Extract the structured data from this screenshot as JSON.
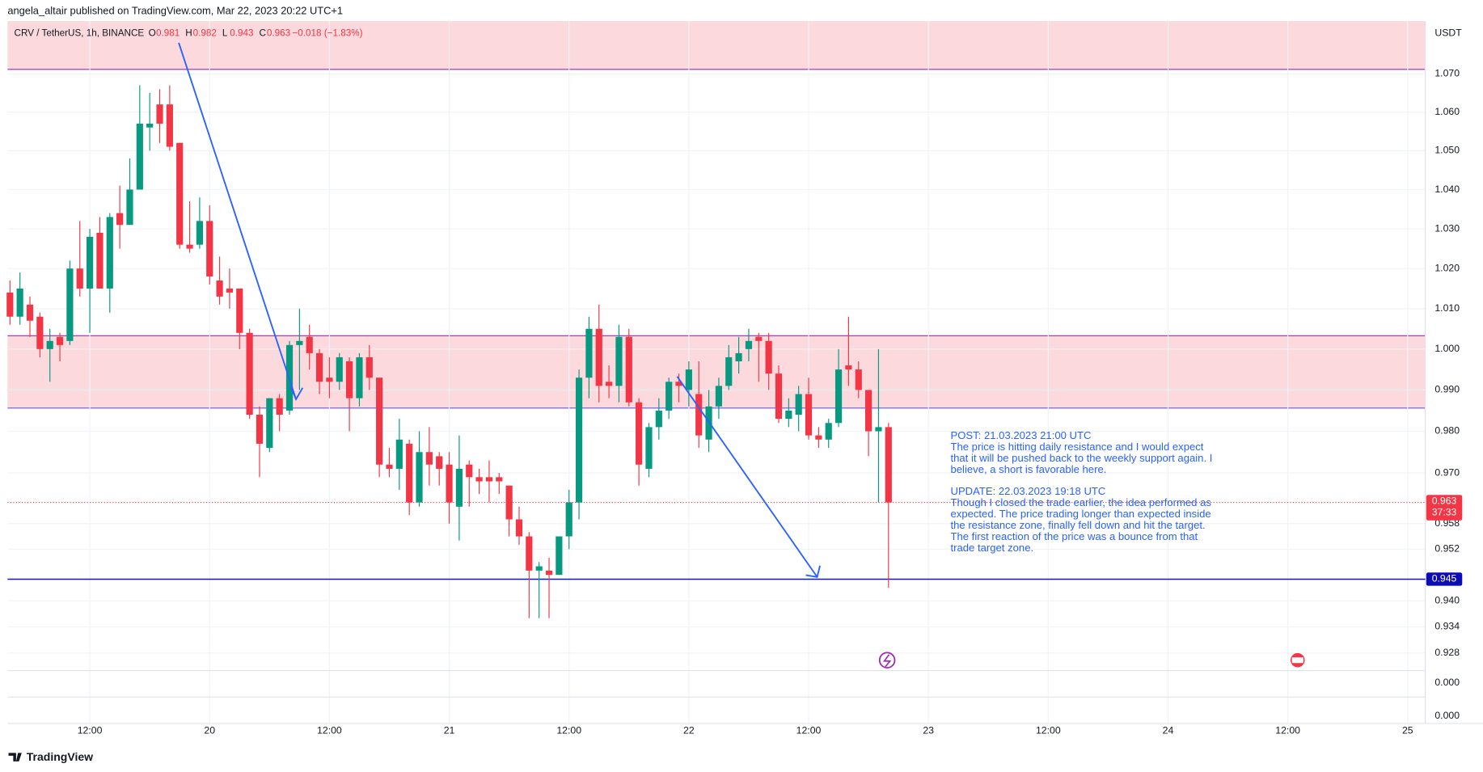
{
  "publisher": "angela_altair published on TradingView.com, Mar 22, 2023 20:22 UTC+1",
  "branding": "TradingView",
  "chart_data": {
    "type": "candlestick",
    "symbol": "CRV / TetherUS, 1h, BINANCE",
    "ohlc_legend": [
      {
        "label": "O",
        "value": 0.981
      },
      {
        "label": "H",
        "value": 0.982
      },
      {
        "label": "L",
        "value": 0.943
      },
      {
        "label": "C",
        "value": 0.963
      }
    ],
    "change": "−0.018 (−1.83%)",
    "currency": "USDT",
    "x": [
      4,
      5,
      6,
      7,
      8,
      9,
      10,
      11,
      12,
      13,
      14,
      15,
      16,
      17,
      18,
      19,
      20,
      21,
      22,
      23,
      24,
      25,
      26,
      27,
      28,
      29,
      30,
      31,
      32,
      33,
      34,
      35,
      36,
      37,
      38,
      39,
      40,
      41,
      42,
      43,
      44,
      45,
      46,
      47,
      48,
      49,
      50,
      51,
      52,
      53,
      54,
      55,
      56,
      57,
      58,
      59,
      60,
      61,
      62,
      63,
      64,
      65,
      66,
      67,
      68,
      69,
      70,
      71,
      72,
      73,
      74,
      75,
      76,
      77,
      78,
      79,
      80,
      81,
      82,
      83,
      84,
      85,
      86,
      87,
      88,
      89,
      90,
      91,
      92
    ],
    "open": [
      1.014,
      1.008,
      1.011,
      1.008,
      1.0,
      1.003,
      1.002,
      1.02,
      1.015,
      1.029,
      1.015,
      1.034,
      1.031,
      1.04,
      1.056,
      1.062,
      1.062,
      1.052,
      1.026,
      1.026,
      1.032,
      1.017,
      1.015,
      1.015,
      1.004,
      0.984,
      0.976,
      0.988,
      0.985,
      1.001,
      1.003,
      0.999,
      0.993,
      0.992,
      0.997,
      0.988,
      0.998,
      0.993,
      0.972,
      0.971,
      0.977,
      0.963,
      0.975,
      0.974,
      0.972,
      0.962,
      0.972,
      0.969,
      0.969,
      0.969,
      0.967,
      0.959,
      0.955,
      0.947,
      0.947,
      0.946,
      0.955,
      0.963,
      0.993,
      1.005,
      0.992,
      0.991,
      1.003,
      0.987,
      0.971,
      0.981,
      0.985,
      0.992,
      0.99,
      0.989,
      0.978,
      0.986,
      0.991,
      0.997,
      1.0,
      1.003,
      1.002,
      0.994,
      0.983,
      0.984,
      0.989,
      0.979,
      0.978,
      0.982,
      0.996,
      0.995,
      0.99,
      0.98,
      0.981
    ],
    "high": [
      1.017,
      1.019,
      1.013,
      1.009,
      1.005,
      1.004,
      1.022,
      1.032,
      1.03,
      1.033,
      1.034,
      1.041,
      1.048,
      1.067,
      1.065,
      1.066,
      1.067,
      1.052,
      1.037,
      1.038,
      1.036,
      1.023,
      1.02,
      1.015,
      1.005,
      0.986,
      0.988,
      0.989,
      1.002,
      1.01,
      1.006,
      1.0,
      0.998,
      0.999,
      0.998,
      0.999,
      1.001,
      0.993,
      0.976,
      0.983,
      0.978,
      0.98,
      0.981,
      0.975,
      0.975,
      0.979,
      0.973,
      0.971,
      0.973,
      0.97,
      0.967,
      0.962,
      0.956,
      0.949,
      0.95,
      0.955,
      0.966,
      0.995,
      1.008,
      1.011,
      0.996,
      1.006,
      1.005,
      0.988,
      0.982,
      0.988,
      0.993,
      0.994,
      0.997,
      0.997,
      0.99,
      0.993,
      1.001,
      1.003,
      1.005,
      1.004,
      1.004,
      0.996,
      0.988,
      0.991,
      0.993,
      0.981,
      0.983,
      1.0,
      1.008,
      0.997,
      0.99,
      1.0,
      0.982
    ],
    "low": [
      1.006,
      1.006,
      1.003,
      0.998,
      0.992,
      0.997,
      1.001,
      1.013,
      1.004,
      1.015,
      1.009,
      1.025,
      1.031,
      1.04,
      1.05,
      1.052,
      1.05,
      1.025,
      1.024,
      1.025,
      1.016,
      1.011,
      1.01,
      1.0,
      0.983,
      0.969,
      0.975,
      0.98,
      0.984,
      0.99,
      0.995,
      0.989,
      0.988,
      0.99,
      0.98,
      0.986,
      0.99,
      0.969,
      0.969,
      0.966,
      0.96,
      0.962,
      0.967,
      0.967,
      0.958,
      0.954,
      0.962,
      0.965,
      0.963,
      0.965,
      0.955,
      0.953,
      0.936,
      0.936,
      0.936,
      0.946,
      0.952,
      0.959,
      0.988,
      0.987,
      0.988,
      0.987,
      0.986,
      0.967,
      0.969,
      0.978,
      0.983,
      0.987,
      0.986,
      0.976,
      0.975,
      0.983,
      0.99,
      0.994,
      0.997,
      0.992,
      0.99,
      0.982,
      0.981,
      0.98,
      0.978,
      0.976,
      0.976,
      0.981,
      0.991,
      0.988,
      0.974,
      0.963,
      0.943
    ],
    "close": [
      1.008,
      1.015,
      1.007,
      1.0,
      1.002,
      1.001,
      1.02,
      1.015,
      1.028,
      1.015,
      1.033,
      1.031,
      1.04,
      1.057,
      1.057,
      1.057,
      1.051,
      1.026,
      1.025,
      1.032,
      1.018,
      1.013,
      1.014,
      1.004,
      0.984,
      0.977,
      0.988,
      0.984,
      1.001,
      1.002,
      0.999,
      0.992,
      0.992,
      0.998,
      0.988,
      0.998,
      0.993,
      0.972,
      0.971,
      0.978,
      0.963,
      0.975,
      0.972,
      0.971,
      0.963,
      0.971,
      0.969,
      0.968,
      0.968,
      0.968,
      0.959,
      0.955,
      0.947,
      0.948,
      0.946,
      0.955,
      0.963,
      0.993,
      1.005,
      0.991,
      0.991,
      1.003,
      0.987,
      0.972,
      0.981,
      0.985,
      0.992,
      0.991,
      0.995,
      0.979,
      0.986,
      0.991,
      0.998,
      0.999,
      1.002,
      1.002,
      0.994,
      0.983,
      0.985,
      0.989,
      0.979,
      0.978,
      0.982,
      0.995,
      0.995,
      0.99,
      0.98,
      0.981,
      0.963
    ],
    "up_color": "#089981",
    "down_color": "#f23645",
    "xlim": [
      3.76,
      145.77
    ],
    "xticks": [
      {
        "value": 12,
        "label": "12:00"
      },
      {
        "value": 24,
        "label": "20"
      },
      {
        "value": 36,
        "label": "12:00"
      },
      {
        "value": 48,
        "label": "21"
      },
      {
        "value": 60,
        "label": "12:00"
      },
      {
        "value": 72,
        "label": "22"
      },
      {
        "value": 84,
        "label": "12:00"
      },
      {
        "value": 96,
        "label": "23"
      },
      {
        "value": 108,
        "label": "12:00"
      },
      {
        "value": 120,
        "label": "24"
      },
      {
        "value": 132,
        "label": "12:00"
      },
      {
        "value": 144,
        "label": "25"
      }
    ],
    "ylim": [
      0.924,
      1.084
    ],
    "log_scale": true,
    "yticks": [
      {
        "value": 1.07,
        "label": "1.070"
      },
      {
        "value": 1.06,
        "label": "1.060"
      },
      {
        "value": 1.05,
        "label": "1.050"
      },
      {
        "value": 1.04,
        "label": "1.040"
      },
      {
        "value": 1.03,
        "label": "1.030"
      },
      {
        "value": 1.02,
        "label": "1.020"
      },
      {
        "value": 1.01,
        "label": "1.010"
      },
      {
        "value": 1,
        "label": "1.000"
      },
      {
        "value": 0.99,
        "label": "0.990"
      },
      {
        "value": 0.98,
        "label": "0.980"
      },
      {
        "value": 0.97,
        "label": "0.970"
      },
      0.958,
      0.952,
      {
        "value": 0.94,
        "label": "0.940"
      },
      0.934,
      0.928
    ],
    "lower_pane_ticks": [
      "0.000",
      "0.000"
    ],
    "grid": true,
    "zones": [
      {
        "from": 1.0712,
        "to": 1.084,
        "color": "#fcd9dc",
        "border_color": "#9c27b0"
      },
      {
        "from": 0.9856,
        "to": 1.0033,
        "color": "#fcd9dc",
        "border_color": "#9c27b0"
      }
    ],
    "support": {
      "value": 0.945,
      "color": "#1515d0"
    },
    "last_price": {
      "value": 0.963,
      "countdown": "37:33",
      "color": "#f23645"
    },
    "annotation": [
      [
        "POST: 21.03.2023 21:00 UTC",
        "The price is hitting daily resistance and I would expect",
        "that it will be pushed back to the weekly support again. I",
        "believe, a short is favorable here."
      ],
      [
        "UPDATE: 22.03.2023 19:18 UTC",
        "Though I closed the trade earlier, the idea performed as",
        "expected. The price trading longer than expected inside",
        "the resistance zone, finally fell down and hit the target.",
        "The first reaction of the price was a bounce from that",
        "trade target zone."
      ]
    ]
  }
}
